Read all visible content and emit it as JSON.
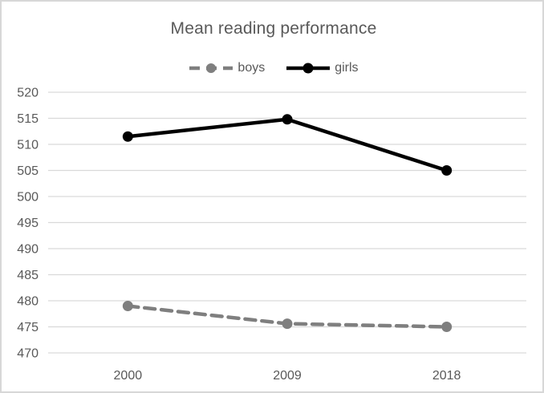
{
  "chart_data": {
    "type": "line",
    "title": "Mean reading performance",
    "categories": [
      "2000",
      "2009",
      "2018"
    ],
    "series": [
      {
        "name": "boys",
        "values": [
          479.0,
          475.6,
          475.0
        ],
        "color": "#7f7f7f",
        "line_style": "dashed",
        "marker": "circle"
      },
      {
        "name": "girls",
        "values": [
          511.5,
          514.8,
          505.0
        ],
        "color": "#000000",
        "line_style": "solid",
        "marker": "circle"
      }
    ],
    "xlabel": "",
    "ylabel": "",
    "ylim": [
      470,
      520
    ],
    "ytick_step": 5,
    "yticks": [
      470,
      475,
      480,
      485,
      490,
      495,
      500,
      505,
      510,
      515,
      520
    ],
    "grid": "horizontal",
    "legend_position": "top",
    "colors": {
      "grid": "#d9d9d9",
      "text": "#595959",
      "border": "#d7d7d7",
      "background": "#ffffff"
    }
  }
}
